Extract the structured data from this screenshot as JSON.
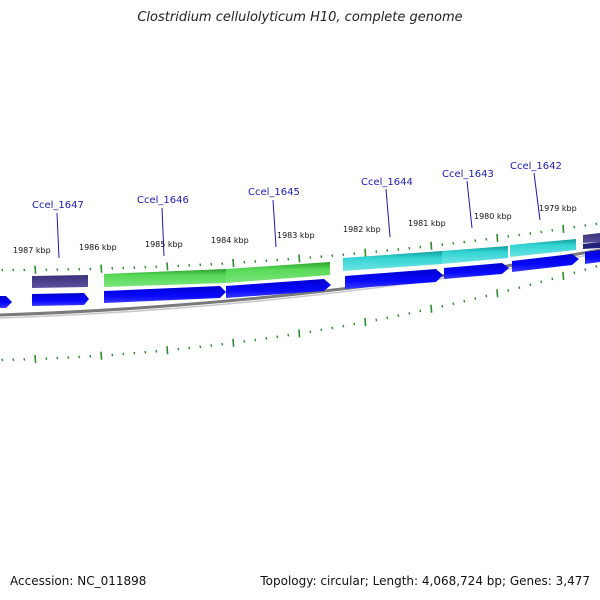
{
  "title": "Clostridium cellulolyticum H10, complete genome",
  "footer": {
    "accession": "Accession: NC_011898",
    "summary": "Topology: circular; Length: 4,068,724 bp; Genes: 3,477"
  },
  "genes": [
    {
      "name": "Ccel_1647"
    },
    {
      "name": "Ccel_1646"
    },
    {
      "name": "Ccel_1645"
    },
    {
      "name": "Ccel_1644"
    },
    {
      "name": "Ccel_1643"
    },
    {
      "name": "Ccel_1642"
    }
  ],
  "ticks": [
    {
      "label": "1987 kbp"
    },
    {
      "label": "1986 kbp"
    },
    {
      "label": "1985 kbp"
    },
    {
      "label": "1984 kbp"
    },
    {
      "label": "1983 kbp"
    },
    {
      "label": "1982 kbp"
    },
    {
      "label": "1981 kbp"
    },
    {
      "label": "1980 kbp"
    },
    {
      "label": "1979 kbp"
    }
  ],
  "colors": {
    "gene_label": "#1a1aaa",
    "cds": "#0000ee",
    "green_feature": "#3fc43f",
    "cyan_feature": "#22c4c4",
    "purple_feature": "#4b418e",
    "backbone": "#7a7a7a",
    "tick": "#2e8b2e"
  }
}
